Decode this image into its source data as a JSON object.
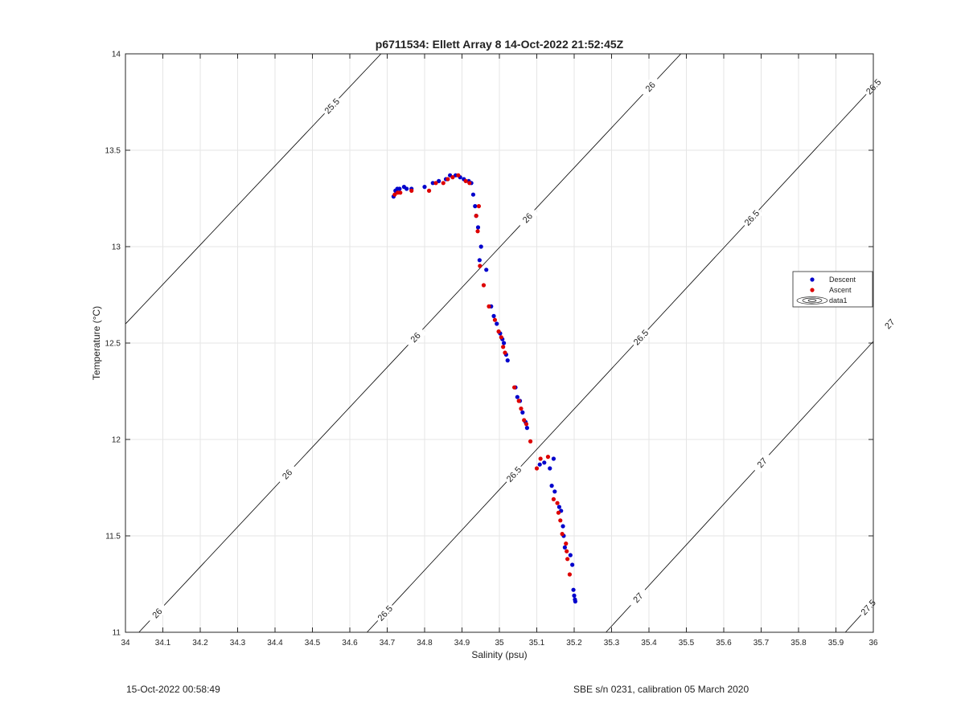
{
  "chart_data": {
    "type": "scatter",
    "title": "p6711534: Ellett Array 8 14-Oct-2022 21:52:45Z",
    "xlabel": "Salinity (psu)",
    "ylabel": "Temperature (°C)",
    "xlim": [
      34,
      36
    ],
    "ylim": [
      11,
      14
    ],
    "grid": true,
    "xticks": [
      "34",
      "34.1",
      "34.2",
      "34.3",
      "34.4",
      "34.5",
      "34.6",
      "34.7",
      "34.8",
      "34.9",
      "35",
      "35.1",
      "35.2",
      "35.3",
      "35.4",
      "35.5",
      "35.6",
      "35.7",
      "35.8",
      "35.9",
      "36"
    ],
    "yticks": [
      "11",
      "11.5",
      "12",
      "12.5",
      "13",
      "13.5",
      "14"
    ],
    "legend": {
      "position": "right",
      "entries": [
        "Descent",
        "Ascent",
        "data1"
      ]
    },
    "series": [
      {
        "name": "Descent",
        "color": "#0000cc",
        "points": [
          [
            34.717,
            13.26
          ],
          [
            34.722,
            13.29
          ],
          [
            34.727,
            13.3
          ],
          [
            34.733,
            13.3
          ],
          [
            34.745,
            13.31
          ],
          [
            34.752,
            13.3
          ],
          [
            34.765,
            13.3
          ],
          [
            34.8,
            13.31
          ],
          [
            34.822,
            13.33
          ],
          [
            34.838,
            13.34
          ],
          [
            34.857,
            13.35
          ],
          [
            34.868,
            13.37
          ],
          [
            34.883,
            13.37
          ],
          [
            34.895,
            13.36
          ],
          [
            34.905,
            13.35
          ],
          [
            34.918,
            13.34
          ],
          [
            34.925,
            13.33
          ],
          [
            34.93,
            13.27
          ],
          [
            34.935,
            13.21
          ],
          [
            34.938,
            13.16
          ],
          [
            34.943,
            13.1
          ],
          [
            34.947,
            12.93
          ],
          [
            34.951,
            13.0
          ],
          [
            34.965,
            12.88
          ],
          [
            34.978,
            12.69
          ],
          [
            34.985,
            12.64
          ],
          [
            34.993,
            12.6
          ],
          [
            35.002,
            12.55
          ],
          [
            35.008,
            12.52
          ],
          [
            35.012,
            12.5
          ],
          [
            35.018,
            12.44
          ],
          [
            35.022,
            12.41
          ],
          [
            35.043,
            12.27
          ],
          [
            35.048,
            12.22
          ],
          [
            35.055,
            12.2
          ],
          [
            35.062,
            12.14
          ],
          [
            35.07,
            12.09
          ],
          [
            35.074,
            12.06
          ],
          [
            35.108,
            11.87
          ],
          [
            35.12,
            11.88
          ],
          [
            35.135,
            11.85
          ],
          [
            35.14,
            11.76
          ],
          [
            35.145,
            11.9
          ],
          [
            35.148,
            11.73
          ],
          [
            35.16,
            11.65
          ],
          [
            35.165,
            11.63
          ],
          [
            35.17,
            11.55
          ],
          [
            35.172,
            11.5
          ],
          [
            35.175,
            11.44
          ],
          [
            35.19,
            11.4
          ],
          [
            35.195,
            11.35
          ],
          [
            35.198,
            11.22
          ],
          [
            35.2,
            11.19
          ],
          [
            35.202,
            11.17
          ],
          [
            35.203,
            11.16
          ]
        ]
      },
      {
        "name": "Ascent",
        "color": "#dd0000",
        "points": [
          [
            34.72,
            13.27
          ],
          [
            34.728,
            13.28
          ],
          [
            34.735,
            13.28
          ],
          [
            34.765,
            13.29
          ],
          [
            34.812,
            13.29
          ],
          [
            34.83,
            13.33
          ],
          [
            34.85,
            13.33
          ],
          [
            34.862,
            13.35
          ],
          [
            34.875,
            13.36
          ],
          [
            34.89,
            13.37
          ],
          [
            34.91,
            13.34
          ],
          [
            34.92,
            13.33
          ],
          [
            34.938,
            13.16
          ],
          [
            34.942,
            13.08
          ],
          [
            34.945,
            13.21
          ],
          [
            34.948,
            12.9
          ],
          [
            34.958,
            12.8
          ],
          [
            34.972,
            12.69
          ],
          [
            34.988,
            12.62
          ],
          [
            34.998,
            12.56
          ],
          [
            35.005,
            12.53
          ],
          [
            35.01,
            12.48
          ],
          [
            35.015,
            12.45
          ],
          [
            35.04,
            12.27
          ],
          [
            35.052,
            12.2
          ],
          [
            35.058,
            12.16
          ],
          [
            35.066,
            12.1
          ],
          [
            35.072,
            12.08
          ],
          [
            35.083,
            11.99
          ],
          [
            35.1,
            11.85
          ],
          [
            35.11,
            11.9
          ],
          [
            35.13,
            11.91
          ],
          [
            35.145,
            11.69
          ],
          [
            35.155,
            11.67
          ],
          [
            35.158,
            11.62
          ],
          [
            35.163,
            11.58
          ],
          [
            35.168,
            11.51
          ],
          [
            35.178,
            11.46
          ],
          [
            35.18,
            11.42
          ],
          [
            35.182,
            11.38
          ],
          [
            35.188,
            11.3
          ]
        ]
      }
    ],
    "contours": [
      {
        "label": "25.5",
        "slope": 2.05,
        "s_at_t11": 33.22,
        "labels_at_t": [
          13.73
        ]
      },
      {
        "label": "26",
        "slope": 2.07,
        "s_at_t11": 34.036,
        "labels_at_t": [
          11.1,
          11.82,
          12.53,
          13.15,
          13.83
        ]
      },
      {
        "label": "26.5",
        "slope": 2.09,
        "s_at_t11": 34.646,
        "labels_at_t": [
          11.1,
          11.82,
          12.53,
          13.15,
          13.83
        ]
      },
      {
        "label": "27",
        "slope": 2.11,
        "s_at_t11": 35.285,
        "labels_at_t": [
          11.18,
          11.88,
          12.6,
          13.22
        ]
      },
      {
        "label": "27.5",
        "slope": 2.13,
        "s_at_t11": 35.925,
        "labels_at_t": [
          11.13
        ]
      }
    ]
  },
  "footer": {
    "left": "15-Oct-2022 00:58:49",
    "right": "SBE s/n 0231, calibration 05 March 2020"
  },
  "colors": {
    "descent": "#0000cc",
    "ascent": "#dd0000",
    "contour": "#000000",
    "grid": "#e5e5e5"
  }
}
